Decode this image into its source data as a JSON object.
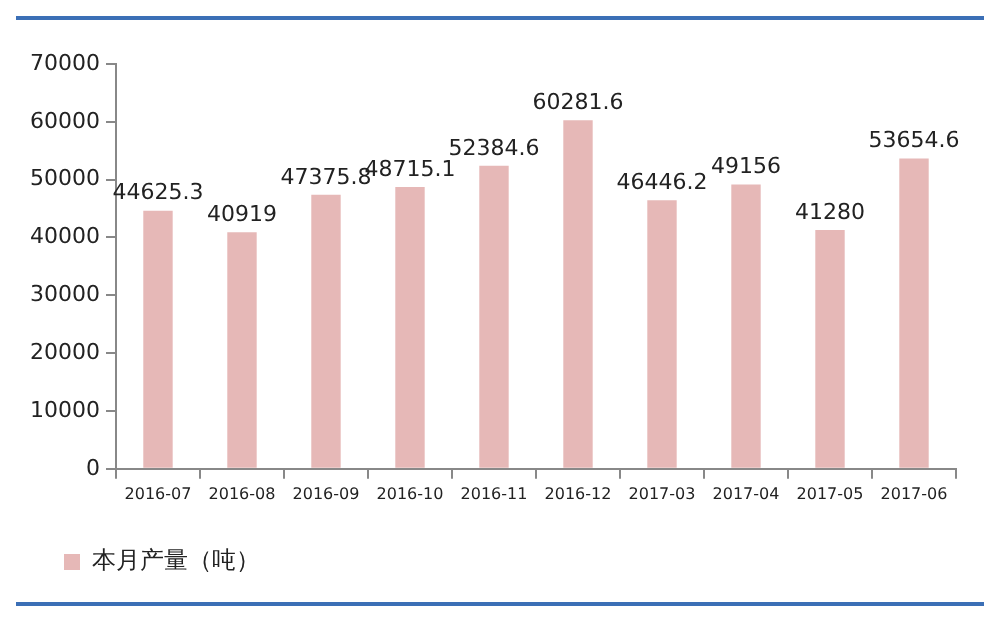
{
  "chart_data": {
    "type": "bar",
    "categories": [
      "2016-07",
      "2016-08",
      "2016-09",
      "2016-10",
      "2016-11",
      "2016-12",
      "2017-03",
      "2017-04",
      "2017-05",
      "2017-06"
    ],
    "series": [
      {
        "name": "本月产量（吨）",
        "color": "#e6b8b7",
        "values": [
          44625.3,
          40919,
          47375.8,
          48715.1,
          52384.6,
          60281.6,
          46446.2,
          49156,
          41280,
          53654.6
        ]
      }
    ],
    "ylim": [
      0,
      70000
    ],
    "yticks": [
      0,
      10000,
      20000,
      30000,
      40000,
      50000,
      60000,
      70000
    ],
    "grid": false,
    "legend": "bottom left",
    "data_labels": true
  }
}
